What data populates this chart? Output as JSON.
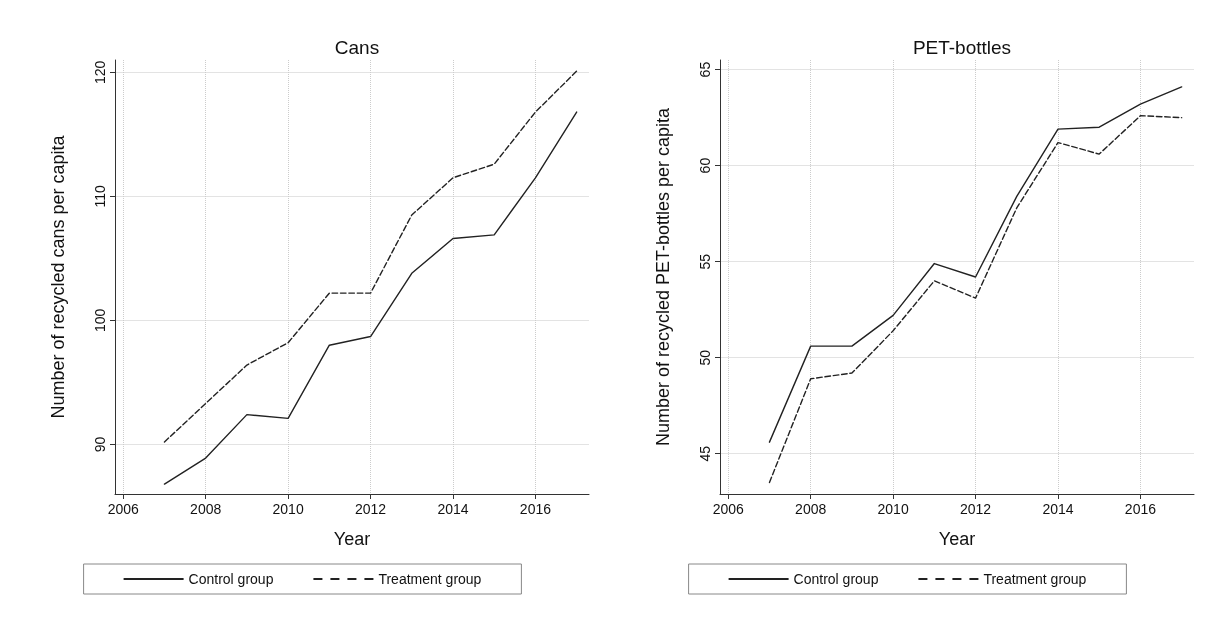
{
  "chart_data": [
    {
      "type": "line",
      "title": "Cans",
      "xlabel": "Year",
      "ylabel": "Number of recycled cans per capita",
      "x": [
        2007,
        2008,
        2009,
        2010,
        2011,
        2012,
        2013,
        2014,
        2015,
        2016,
        2017
      ],
      "xlim": [
        2005.8,
        2017.3
      ],
      "xticks": [
        2006,
        2008,
        2010,
        2012,
        2014,
        2016
      ],
      "ylim": [
        86,
        121
      ],
      "yticks": [
        90,
        100,
        110,
        120
      ],
      "grid": true,
      "legend": "bottom",
      "marker": "none",
      "series": [
        {
          "name": "Control group",
          "color": "#222222",
          "line_style": "solid",
          "values": [
            86.8,
            88.9,
            92.4,
            92.1,
            98.0,
            98.7,
            103.8,
            106.6,
            106.9,
            111.5,
            116.8
          ]
        },
        {
          "name": "Treatment group",
          "color": "#222222",
          "line_style": "dashed",
          "values": [
            90.2,
            93.3,
            96.4,
            98.2,
            102.2,
            102.2,
            108.5,
            111.5,
            112.6,
            116.8,
            120.1
          ]
        }
      ]
    },
    {
      "type": "line",
      "title": "PET-bottles",
      "xlabel": "Year",
      "ylabel": "Number of recycled PET-bottles per capita",
      "x": [
        2007,
        2008,
        2009,
        2010,
        2011,
        2012,
        2013,
        2014,
        2015,
        2016,
        2017
      ],
      "xlim": [
        2005.8,
        2017.3
      ],
      "xticks": [
        2006,
        2008,
        2010,
        2012,
        2014,
        2016
      ],
      "ylim": [
        42.9,
        65.5
      ],
      "yticks": [
        45,
        50,
        55,
        60,
        65
      ],
      "grid": true,
      "legend": "bottom",
      "marker": "none",
      "series": [
        {
          "name": "Control group",
          "color": "#222222",
          "line_style": "solid",
          "values": [
            45.6,
            50.6,
            50.6,
            52.2,
            54.9,
            54.2,
            58.4,
            61.9,
            62.0,
            63.2,
            64.1
          ]
        },
        {
          "name": "Treatment group",
          "color": "#222222",
          "line_style": "dashed",
          "values": [
            43.5,
            48.9,
            49.2,
            51.4,
            54.0,
            53.1,
            57.8,
            61.2,
            60.6,
            62.6,
            62.5
          ]
        }
      ]
    }
  ]
}
